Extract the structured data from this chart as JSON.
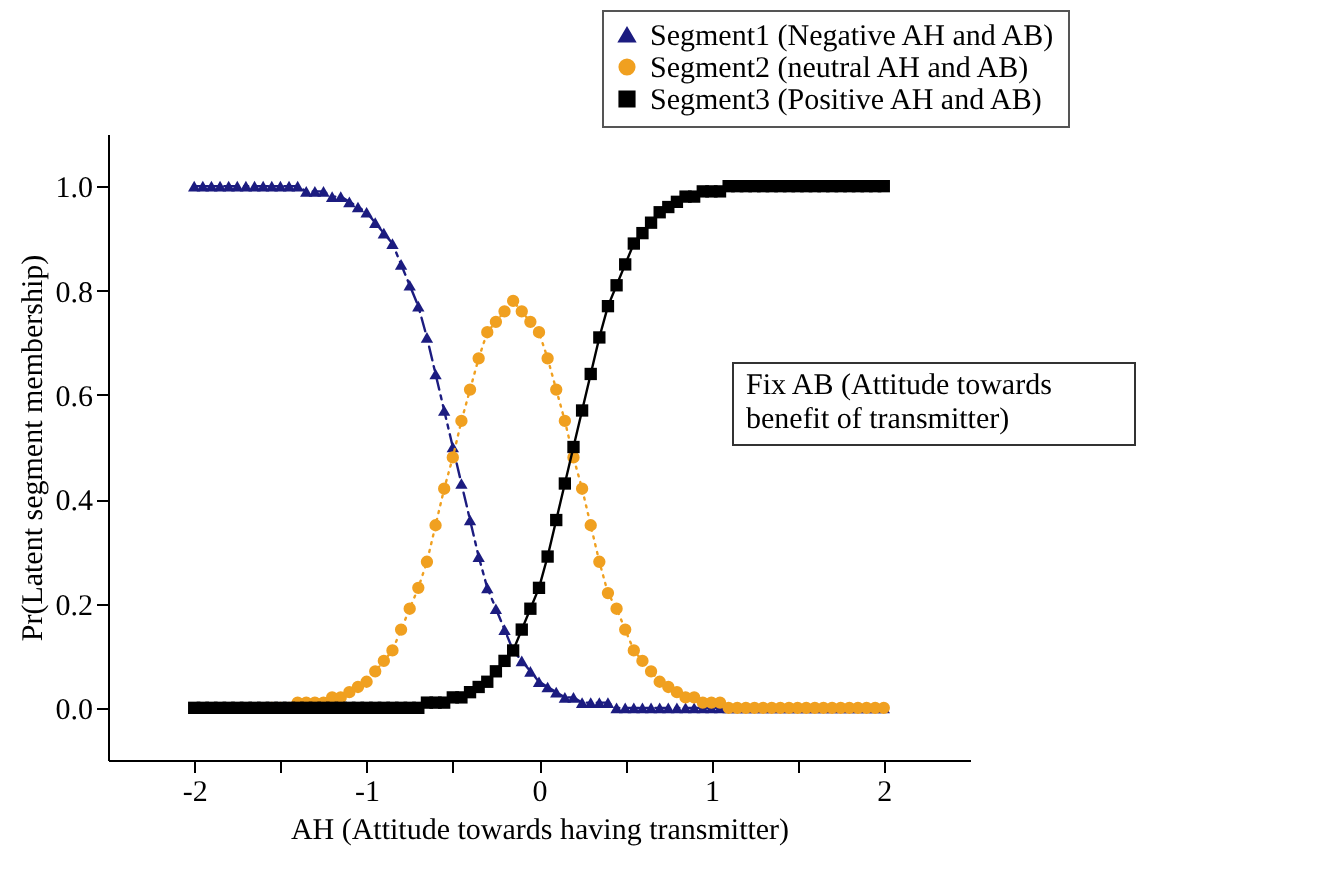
{
  "chart_data": {
    "type": "line",
    "xlabel": "AH (Attitude towards having transmitter)",
    "ylabel": "Pr(Latent segment membership)",
    "annotations": [
      "Fix AB (Attitude towards benefit of transmitter)"
    ],
    "x": [
      -2,
      -1.95,
      -1.9,
      -1.85,
      -1.8,
      -1.75,
      -1.7,
      -1.65,
      -1.6,
      -1.55,
      -1.5,
      -1.45,
      -1.4,
      -1.35,
      -1.3,
      -1.25,
      -1.2,
      -1.15,
      -1.1,
      -1.05,
      -1,
      -0.95,
      -0.9,
      -0.85,
      -0.8,
      -0.75,
      -0.7,
      -0.65,
      -0.6,
      -0.55,
      -0.5,
      -0.45,
      -0.4,
      -0.35,
      -0.3,
      -0.25,
      -0.2,
      -0.15,
      -0.1,
      -0.05,
      0,
      0.05,
      0.1,
      0.15,
      0.2,
      0.25,
      0.3,
      0.35,
      0.4,
      0.45,
      0.5,
      0.55,
      0.6,
      0.65,
      0.7,
      0.75,
      0.8,
      0.85,
      0.9,
      0.95,
      1,
      1.05,
      1.1,
      1.15,
      1.2,
      1.25,
      1.3,
      1.35,
      1.4,
      1.45,
      1.5,
      1.55,
      1.6,
      1.65,
      1.7,
      1.75,
      1.8,
      1.85,
      1.9,
      1.95,
      2
    ],
    "series": [
      {
        "name": "Segment1 (Negative AH and AB)",
        "color": "#1c1c80",
        "marker": "triangle",
        "line_style": "dashed",
        "values": [
          1,
          1,
          1,
          1,
          1,
          1,
          1,
          1,
          1,
          1,
          1,
          1,
          1,
          0.99,
          0.99,
          0.99,
          0.98,
          0.98,
          0.97,
          0.96,
          0.95,
          0.93,
          0.91,
          0.89,
          0.85,
          0.81,
          0.77,
          0.71,
          0.64,
          0.57,
          0.5,
          0.43,
          0.36,
          0.29,
          0.23,
          0.19,
          0.15,
          0.11,
          0.09,
          0.07,
          0.05,
          0.04,
          0.03,
          0.02,
          0.02,
          0.01,
          0.01,
          0.01,
          0.01,
          0,
          0,
          0,
          0,
          0,
          0,
          0,
          0,
          0,
          0,
          0,
          0,
          0,
          0,
          0,
          0,
          0,
          0,
          0,
          0,
          0,
          0,
          0,
          0,
          0,
          0,
          0,
          0,
          0,
          0,
          0,
          0
        ]
      },
      {
        "name": "Segment2 (neutral AH and AB)",
        "color": "#f0a020",
        "marker": "circle",
        "line_style": "dotted",
        "values": [
          null,
          null,
          null,
          null,
          null,
          null,
          null,
          null,
          null,
          0,
          0,
          0,
          0.01,
          0.01,
          0.01,
          0.01,
          0.02,
          0.02,
          0.03,
          0.04,
          0.05,
          0.07,
          0.09,
          0.11,
          0.15,
          0.19,
          0.23,
          0.28,
          0.35,
          0.42,
          0.48,
          0.55,
          0.61,
          0.67,
          0.72,
          0.74,
          0.76,
          0.78,
          0.76,
          0.74,
          0.72,
          0.67,
          0.61,
          0.55,
          0.48,
          0.42,
          0.35,
          0.28,
          0.22,
          0.19,
          0.15,
          0.11,
          0.09,
          0.07,
          0.05,
          0.04,
          0.03,
          0.02,
          0.02,
          0.01,
          0.01,
          0.01,
          0,
          0,
          0,
          0,
          0,
          0,
          0,
          0,
          0,
          0,
          0,
          0,
          0,
          0,
          0,
          0,
          0,
          0,
          0
        ]
      },
      {
        "name": "Segment3 (Positive AH and AB)",
        "color": "#000000",
        "marker": "square",
        "line_style": "solid",
        "values": [
          0,
          0,
          0,
          0,
          0,
          0,
          0,
          0,
          0,
          0,
          0,
          0,
          0,
          0,
          0,
          0,
          0,
          0,
          0,
          0,
          0,
          0,
          0,
          0,
          0,
          0,
          0,
          0.01,
          0.01,
          0.01,
          0.02,
          0.02,
          0.03,
          0.04,
          0.05,
          0.07,
          0.09,
          0.11,
          0.15,
          0.19,
          0.23,
          0.29,
          0.36,
          0.43,
          0.5,
          0.57,
          0.64,
          0.71,
          0.77,
          0.81,
          0.85,
          0.89,
          0.91,
          0.93,
          0.95,
          0.96,
          0.97,
          0.98,
          0.98,
          0.99,
          0.99,
          0.99,
          1,
          1,
          1,
          1,
          1,
          1,
          1,
          1,
          1,
          1,
          1,
          1,
          1,
          1,
          1,
          1,
          1,
          1,
          1
        ]
      }
    ],
    "xlim": [
      -2.5,
      2.5
    ],
    "xticks": [
      -2,
      {
        "value": -1.5,
        "label": null
      },
      -1,
      {
        "value": -0.5,
        "label": null
      },
      0,
      {
        "value": 0.5,
        "label": null
      },
      1,
      {
        "value": 1.5,
        "label": null
      },
      2
    ],
    "ylim": [
      -0.1,
      1.1
    ],
    "yticks": [
      {
        "value": 0,
        "label": "0.0"
      },
      {
        "value": 0.2,
        "label": "0.2"
      },
      {
        "value": 0.4,
        "label": "0.4"
      },
      {
        "value": 0.6,
        "label": "0.6"
      },
      {
        "value": 0.8,
        "label": "0.8"
      },
      {
        "value": 1,
        "label": "1.0"
      }
    ],
    "grid": false,
    "legend": "top right"
  }
}
